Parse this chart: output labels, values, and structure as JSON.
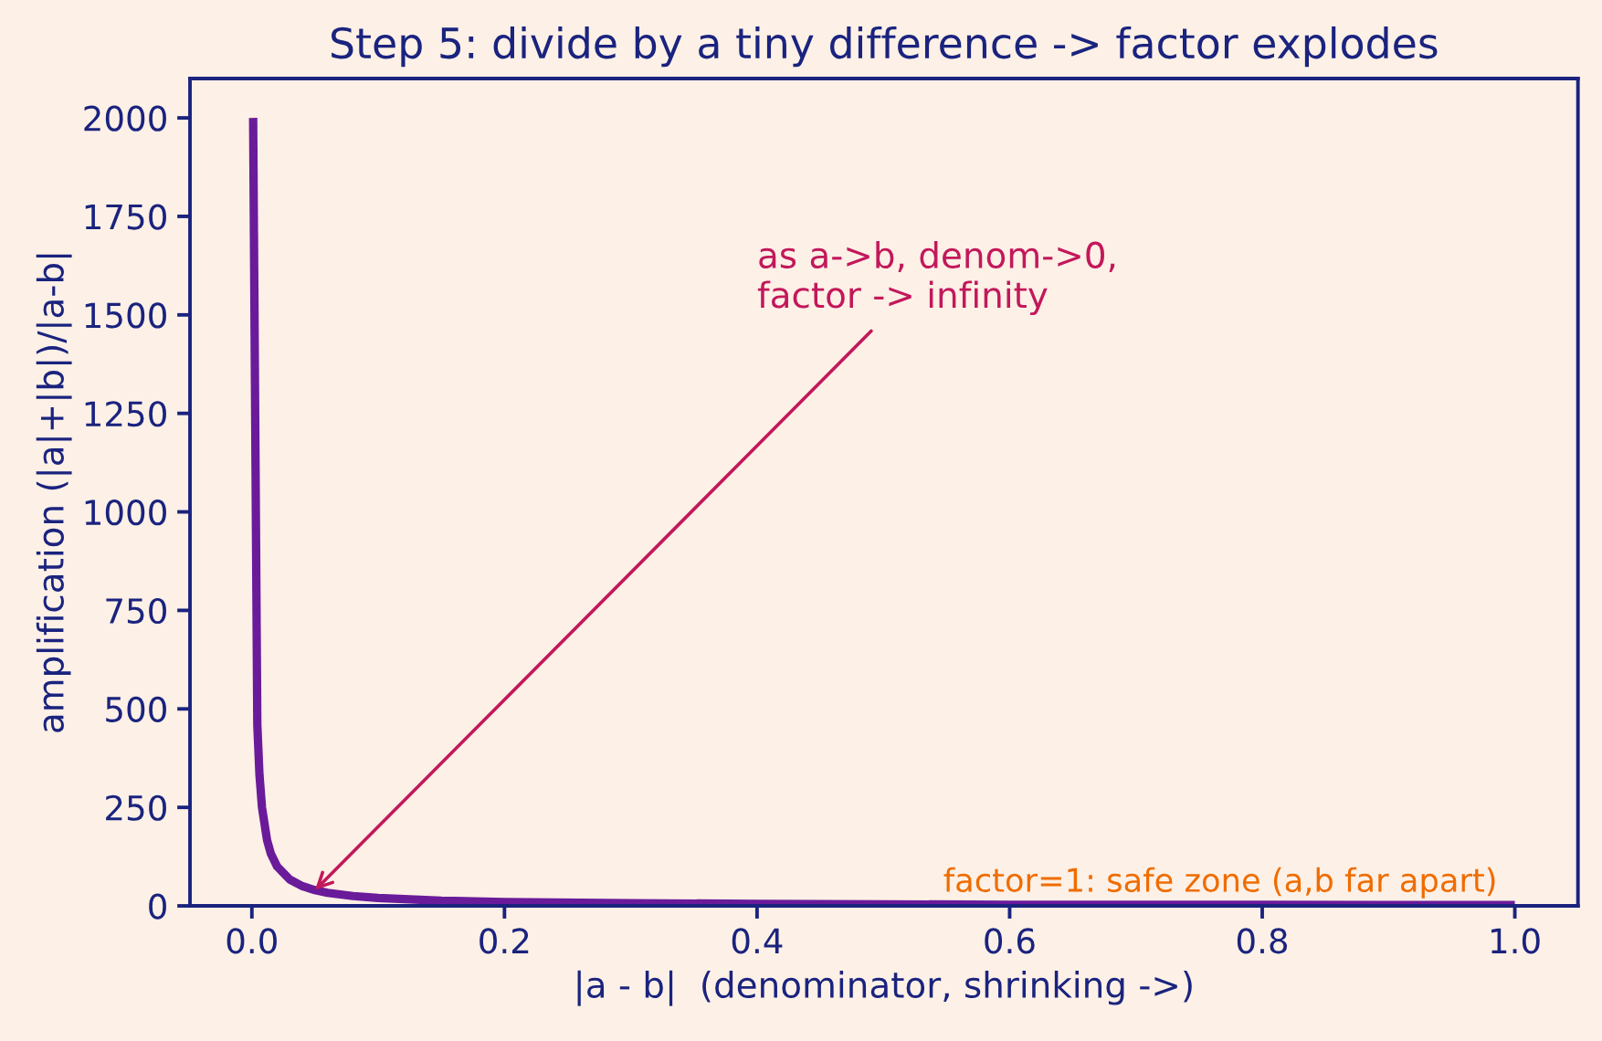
{
  "chart_data": {
    "type": "line",
    "title": "Step 5: divide by a tiny difference -> factor explodes",
    "xlabel": "|a - b|  (denominator, shrinking ->)",
    "ylabel": "amplification (|a|+|b|)/|a-b|",
    "series": [
      {
        "color": "#6a1b9a",
        "x": [
          0.001,
          0.0043,
          0.006,
          0.008,
          0.012,
          0.015,
          0.02,
          0.03,
          0.04,
          0.05,
          0.06,
          0.08,
          0.1,
          0.15,
          0.2,
          0.3,
          0.4,
          0.5,
          0.6,
          0.7,
          0.8,
          0.9,
          1.0
        ],
        "values": [
          2000,
          460,
          333,
          250,
          167,
          133,
          100,
          67,
          50,
          40,
          33,
          25,
          20,
          13,
          10,
          7,
          5,
          4,
          3,
          3,
          3,
          2,
          2
        ]
      }
    ],
    "xlim": [
      -0.049,
      1.05
    ],
    "ylim": [
      0,
      2100
    ],
    "xticks": [
      {
        "value": 0,
        "label": "0.0"
      },
      0.2,
      0.4,
      0.6,
      0.8,
      {
        "value": 1,
        "label": "1.0"
      }
    ],
    "yticks": [
      0,
      250,
      500,
      750,
      1000,
      1250,
      1500,
      1750,
      2000
    ],
    "annotations": [
      {
        "text": "as a->b, denom->0,\nfactor -> infinity",
        "x": 0.05,
        "y": 40
      },
      "factor=1: safe zone (a,b far apart)"
    ],
    "grid": false,
    "marker": "none",
    "line_style": "solid"
  }
}
